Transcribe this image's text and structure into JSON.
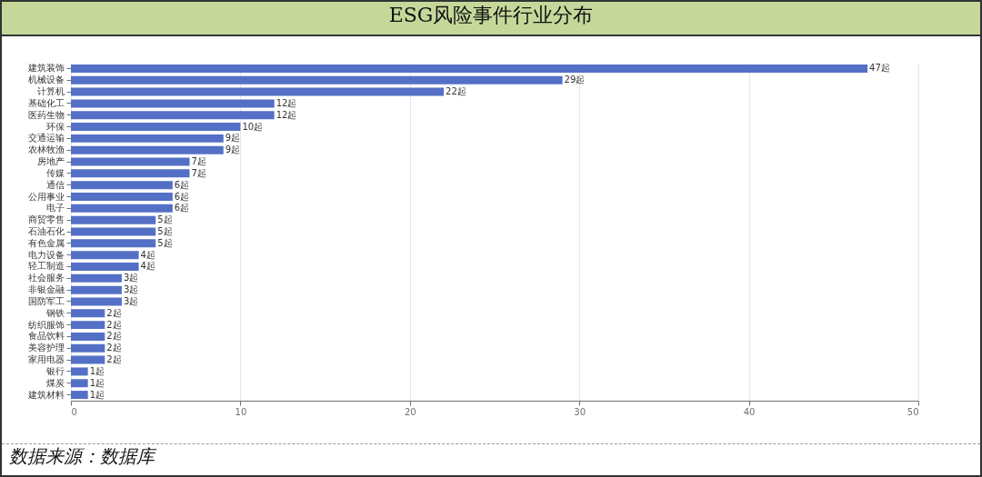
{
  "chart_data": {
    "type": "bar",
    "orientation": "horizontal",
    "title": "ESG风险事件行业分布",
    "categories": [
      "建筑装饰",
      "机械设备",
      "计算机",
      "基础化工",
      "医药生物",
      "环保",
      "交通运输",
      "农林牧渔",
      "房地产",
      "传媒",
      "通信",
      "公用事业",
      "电子",
      "商贸零售",
      "石油石化",
      "有色金属",
      "电力设备",
      "轻工制造",
      "社会服务",
      "非银金融",
      "国防军工",
      "钢铁",
      "纺织服饰",
      "食品饮料",
      "美容护理",
      "家用电器",
      "银行",
      "煤炭",
      "建筑材料"
    ],
    "values": [
      47,
      29,
      22,
      12,
      12,
      10,
      9,
      9,
      7,
      7,
      6,
      6,
      6,
      5,
      5,
      5,
      4,
      4,
      3,
      3,
      3,
      2,
      2,
      2,
      2,
      2,
      1,
      1,
      1
    ],
    "value_labels": [
      "47起",
      "29起",
      "22起",
      "12起",
      "12起",
      "10起",
      "9起",
      "9起",
      "7起",
      "7起",
      "6起",
      "6起",
      "6起",
      "5起",
      "5起",
      "5起",
      "4起",
      "4起",
      "3起",
      "3起",
      "3起",
      "2起",
      "2起",
      "2起",
      "2起",
      "2起",
      "1起",
      "1起",
      "1起"
    ],
    "color": "#5470c6",
    "xlim": [
      0,
      50
    ],
    "xticks": [
      0,
      10,
      20,
      30,
      40,
      50
    ],
    "grid": "x",
    "annotations": [
      "数据来源：数据库"
    ]
  }
}
